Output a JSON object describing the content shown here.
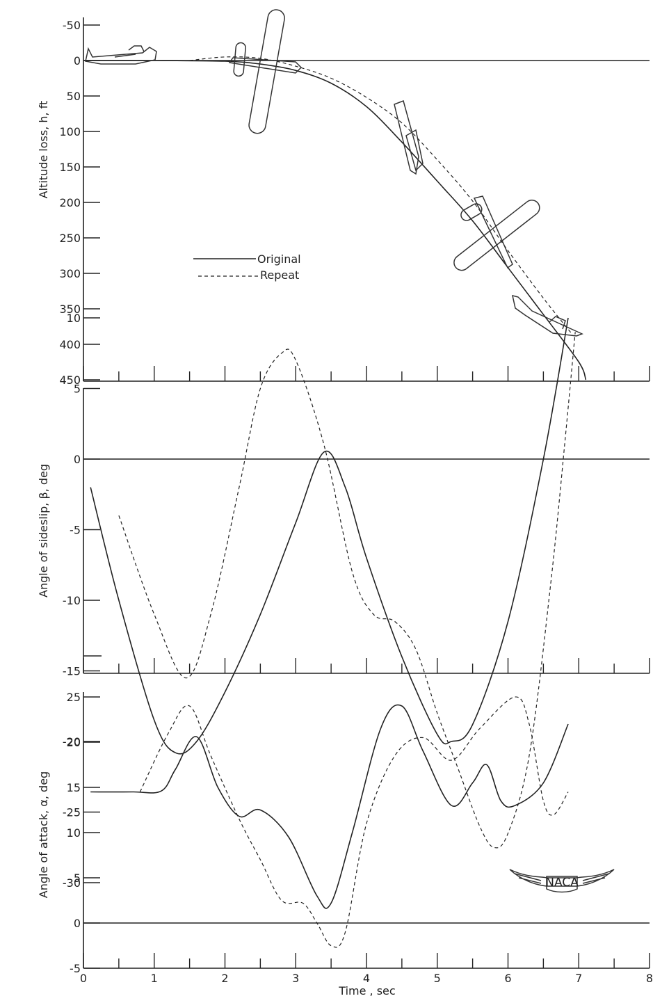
{
  "chart_data": [
    {
      "type": "line",
      "ylabel": "Altitude loss, h, ft",
      "xlabel": "",
      "xlim": [
        0,
        8
      ],
      "ylim": [
        -50,
        450
      ],
      "y_inverted": true,
      "y_ticks": [
        "-50",
        "0",
        "50",
        "100",
        "150",
        "200",
        "250",
        "300",
        "350",
        "400",
        "450"
      ],
      "legend": {
        "placement": "center-left",
        "entries": [
          "Original",
          "Repeat"
        ]
      },
      "series": [
        {
          "name": "Original",
          "style": "solid",
          "x": [
            0,
            1,
            2,
            2.5,
            3,
            3.5,
            4,
            4.5,
            5,
            5.5,
            6,
            6.5,
            7,
            7.1
          ],
          "y": [
            0,
            0,
            1,
            5,
            14,
            32,
            65,
            115,
            170,
            226,
            292,
            358,
            425,
            450
          ]
        },
        {
          "name": "Repeat",
          "style": "dashed",
          "x": [
            1.5,
            2,
            2.5,
            3,
            3.5,
            4,
            4.5,
            5,
            5.5,
            6,
            6.5,
            6.9
          ],
          "y": [
            0,
            -5,
            -3,
            8,
            25,
            52,
            88,
            140,
            198,
            268,
            335,
            385
          ]
        }
      ]
    },
    {
      "type": "line",
      "ylabel": "Angle of sideslip, β, deg",
      "xlabel": "",
      "xlim": [
        0,
        8
      ],
      "ylim": [
        -30,
        10
      ],
      "y_ticks": [
        "10",
        "5",
        "0",
        "-5",
        "-10",
        "-15",
        "-20",
        "-25",
        "-30"
      ],
      "series": [
        {
          "name": "Original",
          "style": "solid",
          "x": [
            0.1,
            0.5,
            1.0,
            1.3,
            1.6,
            2.0,
            2.5,
            3.0,
            3.4,
            3.7,
            4.0,
            4.5,
            5.0,
            5.2,
            5.5,
            6.0,
            6.5,
            6.85
          ],
          "y": [
            -2,
            -10,
            -18.5,
            -20.8,
            -20,
            -16.5,
            -11,
            -4.5,
            0.5,
            -2,
            -7,
            -14,
            -19.5,
            -20,
            -18.8,
            -11.5,
            0,
            10
          ]
        },
        {
          "name": "Repeat",
          "style": "dashed",
          "x": [
            0.5,
            1.0,
            1.45,
            1.8,
            2.2,
            2.5,
            2.8,
            3.0,
            3.4,
            3.8,
            4.1,
            4.4,
            4.7,
            5.0,
            5.3,
            5.6,
            5.8,
            6.0,
            6.3,
            6.6,
            6.8,
            6.95
          ],
          "y": [
            -4,
            -11,
            -15.5,
            -11,
            -2,
            5,
            7.5,
            7,
            1,
            -8,
            -11,
            -11.5,
            -13.5,
            -18,
            -22,
            -26,
            -27.5,
            -26.5,
            -21,
            -9,
            1,
            9
          ]
        }
      ]
    },
    {
      "type": "line",
      "ylabel": "Angle of attack, α, deg",
      "xlabel": "Time , sec",
      "xlim": [
        0,
        8
      ],
      "ylim": [
        -5,
        25
      ],
      "x_ticks": [
        "0",
        "1",
        "2",
        "3",
        "4",
        "5",
        "6",
        "7",
        "8"
      ],
      "y_ticks": [
        "25",
        "20",
        "15",
        "10",
        "5",
        "0",
        "-5"
      ],
      "series": [
        {
          "name": "Original",
          "style": "solid",
          "x": [
            0.1,
            0.7,
            1.1,
            1.3,
            1.6,
            1.9,
            2.2,
            2.5,
            2.9,
            3.3,
            3.5,
            3.8,
            4.2,
            4.5,
            4.8,
            5.2,
            5.5,
            5.7,
            5.9,
            6.1,
            6.5,
            6.85
          ],
          "y": [
            14.5,
            14.5,
            14.6,
            17,
            20.6,
            15,
            11.8,
            12.5,
            9.5,
            3,
            2.2,
            10,
            21.5,
            24,
            19,
            13,
            15.5,
            17.5,
            13.5,
            13,
            15.5,
            22
          ]
        },
        {
          "name": "Repeat",
          "style": "dashed",
          "x": [
            0.8,
            1.2,
            1.5,
            1.8,
            2.2,
            2.5,
            2.8,
            3.1,
            3.3,
            3.5,
            3.7,
            4.0,
            4.4,
            4.8,
            5.2,
            5.6,
            6.1,
            6.3,
            6.5,
            6.65,
            6.85
          ],
          "y": [
            14.5,
            21,
            24,
            18.5,
            11.5,
            7,
            2.5,
            2.2,
            0,
            -2.5,
            -1,
            11,
            18.5,
            20.5,
            18,
            21.5,
            25,
            22,
            13.5,
            12,
            14.5
          ]
        }
      ]
    }
  ],
  "logo": {
    "text": "NACA"
  },
  "colors": {
    "ink": "#222222",
    "background": "#ffffff"
  }
}
